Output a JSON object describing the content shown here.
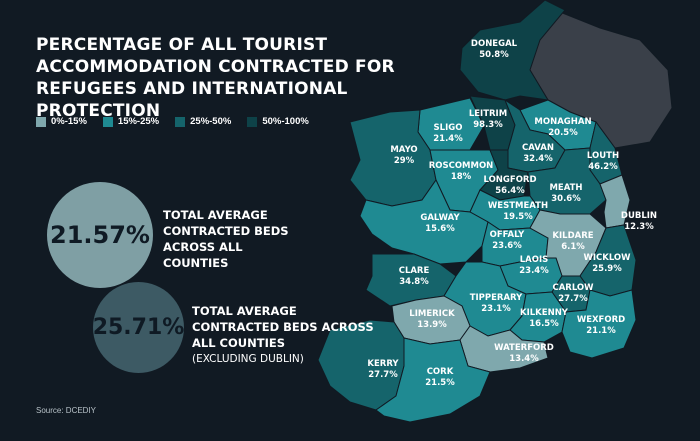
{
  "title": "PERCENTAGE OF ALL TOURIST ACCOMMODATION CONTRACTED FOR REFUGEES AND INTERNATIONAL PROTECTION",
  "legend": [
    {
      "label": "0%-15%",
      "color": "#7fa8ad"
    },
    {
      "label": "15%-25%",
      "color": "#1f8a92"
    },
    {
      "label": "25%-50%",
      "color": "#15646b"
    },
    {
      "label": "50%-100%",
      "color": "#0e4248"
    }
  ],
  "stats": {
    "all": {
      "value": "21.57%",
      "text": "TOTAL AVERAGE CONTRACTED BEDS ACROSS ALL COUNTIES"
    },
    "excl": {
      "value": "25.71%",
      "text": "TOTAL AVERAGE CONTRACTED BEDS ACROSS ALL COUNTIES",
      "note": "(EXCLUDING DUBLIN)"
    }
  },
  "source": "Source: DCEDIY",
  "counties": [
    {
      "name": "DONEGAL",
      "value": "50.8%",
      "band": 3
    },
    {
      "name": "LEITRIM",
      "value": "98.3%",
      "band": 3
    },
    {
      "name": "SLIGO",
      "value": "21.4%",
      "band": 1
    },
    {
      "name": "MONAGHAN",
      "value": "20.5%",
      "band": 1
    },
    {
      "name": "MAYO",
      "value": "29%",
      "band": 2
    },
    {
      "name": "CAVAN",
      "value": "32.4%",
      "band": 2
    },
    {
      "name": "LOUTH",
      "value": "46.2%",
      "band": 2
    },
    {
      "name": "ROSCOMMON",
      "value": "18%",
      "band": 1
    },
    {
      "name": "LONGFORD",
      "value": "56.4%",
      "band": 3
    },
    {
      "name": "MEATH",
      "value": "30.6%",
      "band": 2
    },
    {
      "name": "WESTMEATH",
      "value": "19.5%",
      "band": 1
    },
    {
      "name": "DUBLIN",
      "value": "12.3%",
      "band": 0
    },
    {
      "name": "GALWAY",
      "value": "15.6%",
      "band": 1
    },
    {
      "name": "OFFALY",
      "value": "23.6%",
      "band": 1
    },
    {
      "name": "KILDARE",
      "value": "6.1%",
      "band": 0
    },
    {
      "name": "WICKLOW",
      "value": "25.9%",
      "band": 2
    },
    {
      "name": "LAOIS",
      "value": "23.4%",
      "band": 1
    },
    {
      "name": "CLARE",
      "value": "34.8%",
      "band": 2
    },
    {
      "name": "CARLOW",
      "value": "27.7%",
      "band": 2
    },
    {
      "name": "TIPPERARY",
      "value": "23.1%",
      "band": 1
    },
    {
      "name": "LIMERICK",
      "value": "13.9%",
      "band": 0
    },
    {
      "name": "KILKENNY",
      "value": "16.5%",
      "band": 1
    },
    {
      "name": "WEXFORD",
      "value": "21.1%",
      "band": 1
    },
    {
      "name": "WATERFORD",
      "value": "13.4%",
      "band": 0
    },
    {
      "name": "KERRY",
      "value": "27.7%",
      "band": 2
    },
    {
      "name": "CORK",
      "value": "21.5%",
      "band": 1
    }
  ]
}
